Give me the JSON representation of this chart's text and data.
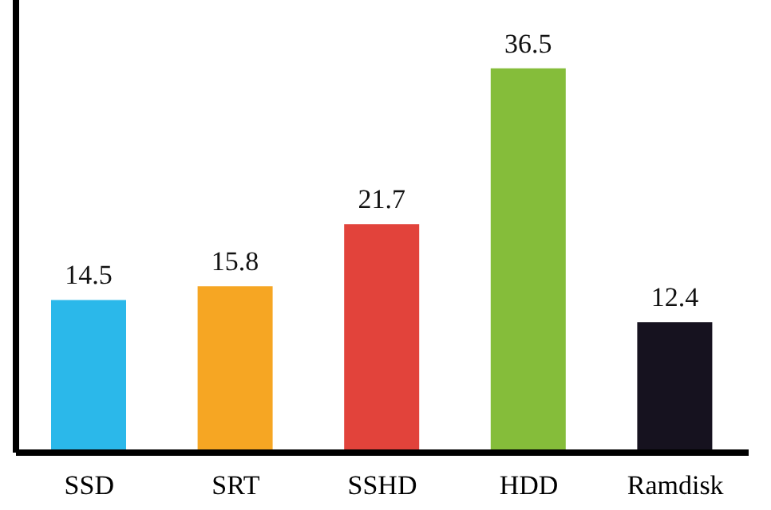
{
  "chart_data": {
    "type": "bar",
    "categories": [
      "SSD",
      "SRT",
      "SSHD",
      "HDD",
      "Ramdisk"
    ],
    "values": [
      14.5,
      15.8,
      21.7,
      36.5,
      12.4
    ],
    "colors": [
      "#2bb8ea",
      "#f6a623",
      "#e2433b",
      "#85bd3a",
      "#16121f"
    ],
    "ylim": [
      0,
      43
    ],
    "data_labels": true,
    "tick_labels": "x"
  }
}
